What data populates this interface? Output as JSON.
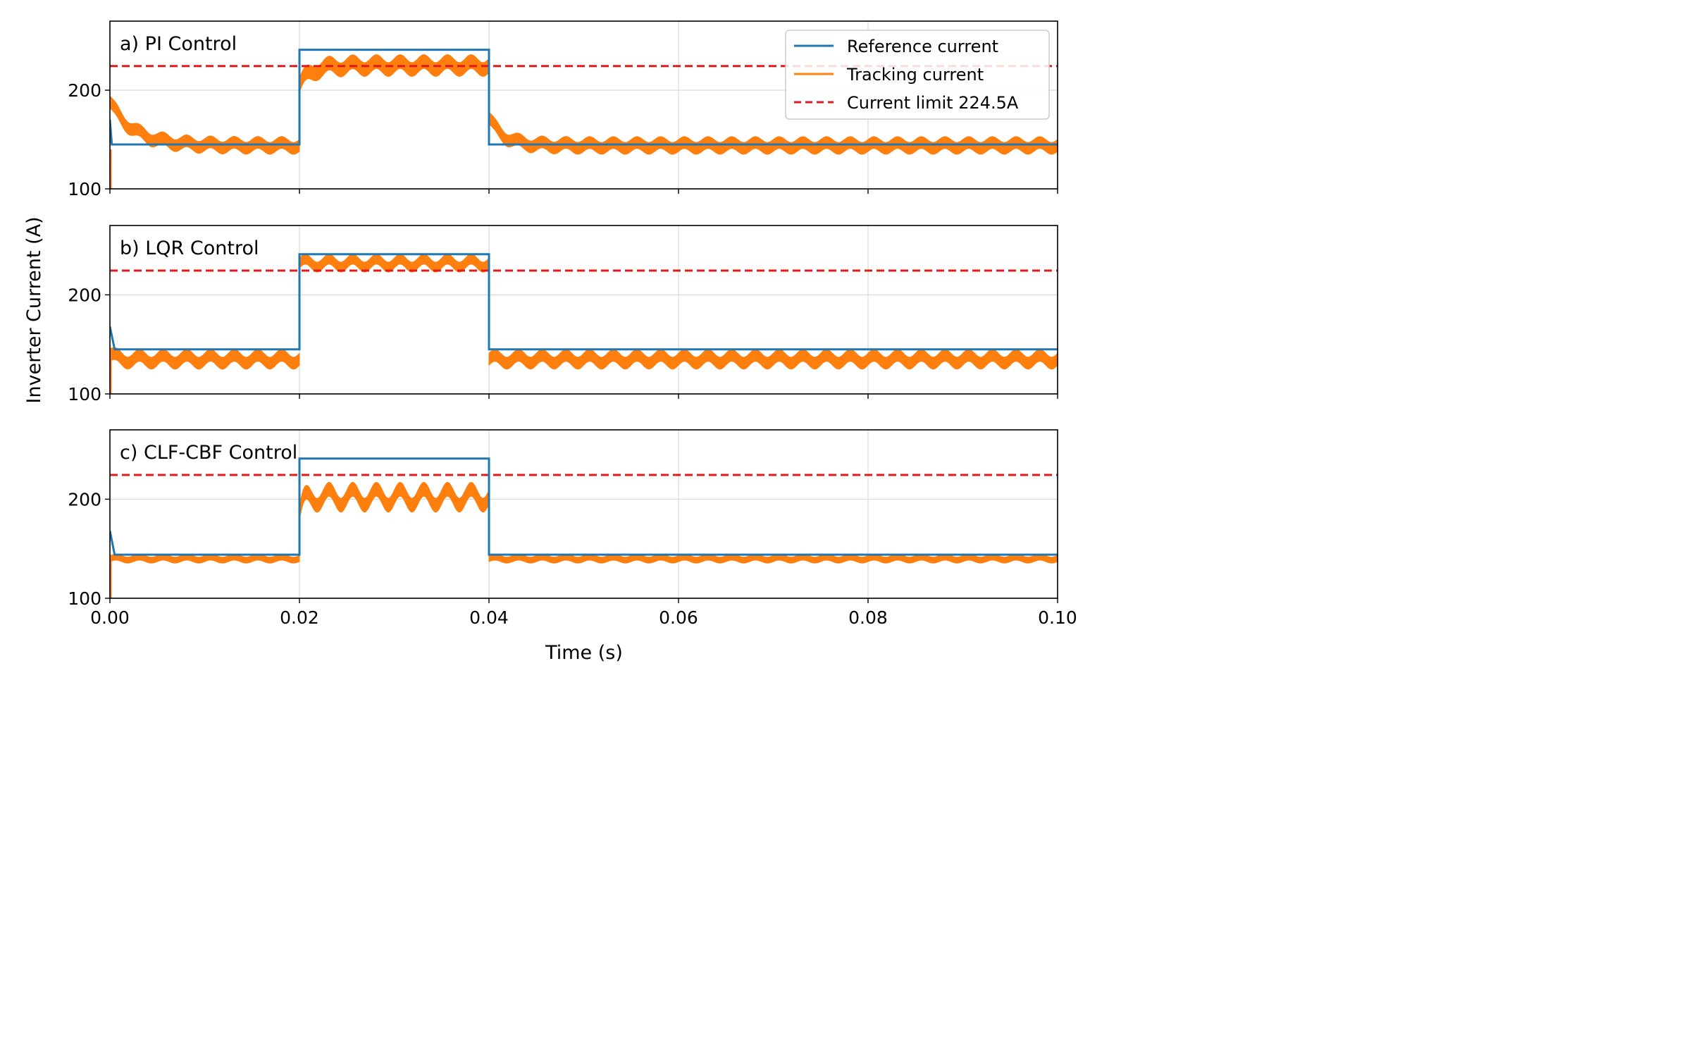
{
  "chart_data": {
    "type": "line",
    "xlabel": "Time (s)",
    "ylabel": "Inverter Current (A)",
    "xlim": [
      0.0,
      0.1
    ],
    "ylim": [
      100,
      270
    ],
    "x_ticks": [
      "0.00",
      "0.02",
      "0.04",
      "0.06",
      "0.08",
      "0.10"
    ],
    "y_ticks": [
      "100",
      "200"
    ],
    "grid": true,
    "legend": {
      "placement": "top-right",
      "entries": [
        "Reference current",
        "Tracking current",
        "Current limit 224.5A"
      ]
    },
    "colors": {
      "reference": "#1f77b4",
      "tracking": "#ff7f0e",
      "limit": "#e31a1c",
      "grid": "#d9d9d9"
    },
    "current_limit": 224.5,
    "panels": [
      {
        "title": "a) PI Control",
        "reference": {
          "x": [
            0.0,
            0.0002,
            0.02,
            0.02,
            0.04,
            0.04,
            0.1
          ],
          "y": [
            170,
            145,
            145,
            241,
            241,
            145,
            145
          ]
        },
        "tracking_segments": [
          {
            "t_start": 0.0,
            "t_end": 0.02,
            "center": 144,
            "band": 6,
            "ripple": 3,
            "overshoot": 188,
            "overshoot_decay": 0.0025
          },
          {
            "t_start": 0.02,
            "t_end": 0.04,
            "center": 225,
            "band": 7,
            "ripple": 4,
            "overshoot": 205,
            "overshoot_decay": 0.0012
          },
          {
            "t_start": 0.04,
            "t_end": 0.1,
            "center": 144,
            "band": 6,
            "ripple": 3,
            "overshoot": 172,
            "overshoot_decay": 0.0015
          }
        ]
      },
      {
        "title": "b) LQR Control",
        "reference": {
          "x": [
            0.0,
            0.0005,
            0.02,
            0.02,
            0.04,
            0.04,
            0.1
          ],
          "y": [
            168,
            145,
            145,
            241,
            241,
            145,
            145
          ]
        },
        "tracking_segments": [
          {
            "t_start": 0.0,
            "t_end": 0.02,
            "center": 135,
            "band": 6,
            "ripple": 4,
            "overshoot": 140,
            "overshoot_decay": 0.0005
          },
          {
            "t_start": 0.02,
            "t_end": 0.04,
            "center": 232,
            "band": 5,
            "ripple": 4,
            "overshoot": 232,
            "overshoot_decay": 0.0005
          },
          {
            "t_start": 0.04,
            "t_end": 0.1,
            "center": 135,
            "band": 6,
            "ripple": 4,
            "overshoot": 135,
            "overshoot_decay": 0.0005
          }
        ]
      },
      {
        "title": "c) CLF-CBF Control",
        "reference": {
          "x": [
            0.0,
            0.0005,
            0.02,
            0.02,
            0.04,
            0.04,
            0.1
          ],
          "y": [
            168,
            144,
            144,
            241,
            241,
            144,
            144
          ]
        },
        "tracking_segments": [
          {
            "t_start": 0.0,
            "t_end": 0.02,
            "center": 140,
            "band": 3,
            "ripple": 1.5,
            "overshoot": 140,
            "overshoot_decay": 0.0005
          },
          {
            "t_start": 0.02,
            "t_end": 0.04,
            "center": 202,
            "band": 7,
            "ripple": 8,
            "overshoot": 185,
            "overshoot_decay": 0.0004
          },
          {
            "t_start": 0.04,
            "t_end": 0.1,
            "center": 140,
            "band": 3,
            "ripple": 1.5,
            "overshoot": 140,
            "overshoot_decay": 0.0005
          }
        ]
      }
    ]
  }
}
